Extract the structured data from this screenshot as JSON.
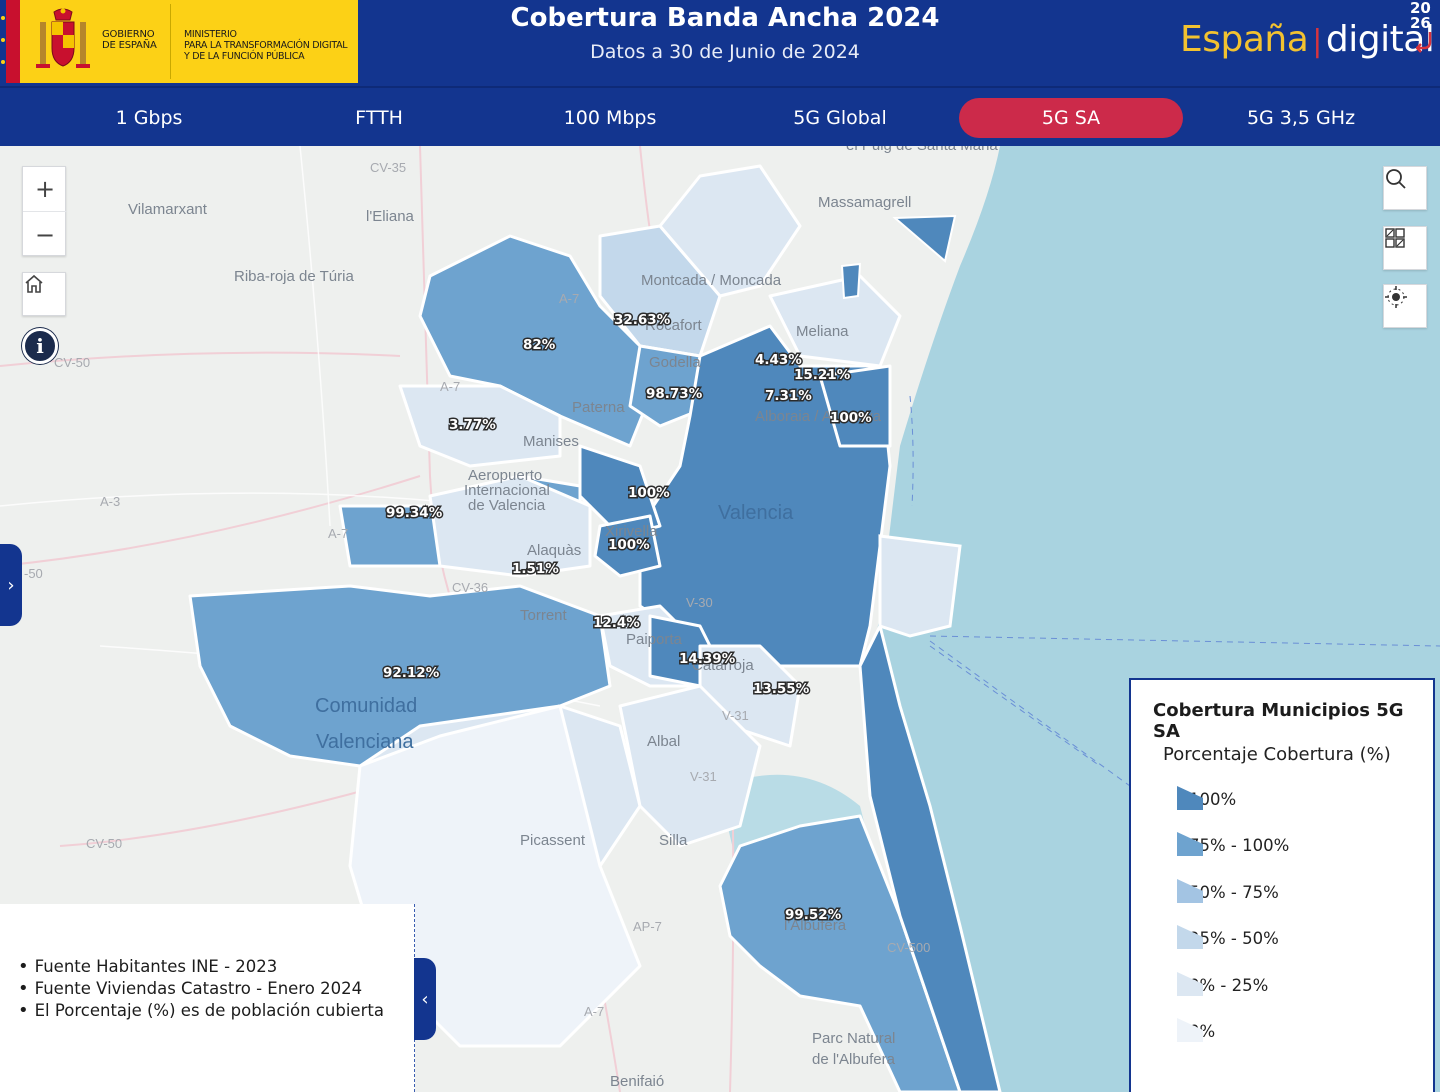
{
  "header": {
    "gov_line1": "GOBIERNO",
    "gov_line2": "DE ESPAÑA",
    "ministry_line1": "MINISTERIO",
    "ministry_line2": "PARA LA TRANSFORMACIÓN DIGITAL",
    "ministry_line3": "Y DE LA FUNCIÓN PÚBLICA",
    "title": "Cobertura Banda Ancha 2024",
    "subtitle": "Datos a 30 de Junio de 2024",
    "brand_word1": "España",
    "brand_word2": "digital",
    "brand_year_top": "20",
    "brand_year_bottom": "26",
    "colors": {
      "primary": "#13358f",
      "gov_yellow": "#fcd116",
      "active_tab": "#cc2a4a",
      "brand_yellow": "#f2c230"
    }
  },
  "tabs": [
    {
      "label": "1 Gbps",
      "active": false
    },
    {
      "label": "FTTH",
      "active": false
    },
    {
      "label": "100 Mbps",
      "active": false
    },
    {
      "label": "5G Global",
      "active": false
    },
    {
      "label": "5G SA",
      "active": true
    },
    {
      "label": "5G 3,5 GHz",
      "active": false
    }
  ],
  "controls": {
    "zoom_in": "+",
    "zoom_out": "−",
    "home_icon": "home-icon",
    "info_icon": "info-icon",
    "search_icon": "search-icon",
    "qr_icon": "qr-grid-icon",
    "locate_icon": "locate-icon",
    "collapse_left": "›",
    "collapse_notes": "‹"
  },
  "map": {
    "places": {
      "vilamarxant": "Vilamarxant",
      "eliana": "l'Eliana",
      "ribaroja": "Riba-roja de Túria",
      "massamagrell": "Massamagrell",
      "puig": "el Puig de Santa Maria",
      "moncada": "Montcada / Moncada",
      "rocafort": "Rocafort",
      "godella": "Godella",
      "meliana": "Meliana",
      "paterna": "Paterna",
      "manises": "Manises",
      "alboraia": "Alboraia / Alboraya",
      "aeropuerto1": "Aeropuerto",
      "aeropuerto2": "Internacional",
      "aeropuerto3": "de Valencia",
      "valencia": "Valencia",
      "xirivella": "Xirivella",
      "alaquas": "Alaquàs",
      "torrent": "Torrent",
      "paiporta": "Paiporta",
      "catarroja": "Catarroja",
      "albal": "Albal",
      "picassent": "Picassent",
      "silla": "Silla",
      "albufera_town": "l'Albufera",
      "comunidad1": "Comunidad",
      "comunidad2": "Valenciana",
      "parc1": "Parc Natural",
      "parc2": "de l'Albufera",
      "benifaio": "Benifaió"
    },
    "roads": {
      "cv35": "CV-35",
      "cv50a": "CV-50",
      "cv50b": "-50",
      "cv50c": "CV-50",
      "cv500": "CV-500",
      "a7a": "A-7",
      "a7b": "A-7",
      "a7c": "A-7",
      "a7d": "A-7",
      "a3": "A-3",
      "cv36": "CV-36",
      "v30": "V-30",
      "v31a": "V-31",
      "v31b": "V-31",
      "ap7": "AP-7"
    },
    "coverage_labels": {
      "moncada": "32.63%",
      "paterna": "82%",
      "godella": "98.73%",
      "meliana": "4.43%",
      "foios": "15.21%",
      "alboraia": "7.31%",
      "alboraia_coast": "100%",
      "manises": "3.77%",
      "quart": "100%",
      "aldaia": "99.34%",
      "xirivella": "100%",
      "alaquas": "1.51%",
      "paiporta": "12.4%",
      "catarroja": "14.39%",
      "massanassa": "13.55%",
      "torrent": "92.12%",
      "albufera": "99.52%"
    },
    "colors": {
      "sea": "#a9d3e0",
      "land": "#eef0ee",
      "c100": "#4f88bc",
      "c75": "#6ea3cf",
      "c50": "#a3c4e3",
      "c25": "#c3d8eb",
      "c0": "#dce7f2",
      "cnone": "#eef3f9"
    }
  },
  "notes": [
    "Fuente Habitantes INE - 2023",
    "Fuente Viviendas Catastro - Enero 2024",
    "El Porcentaje (%) es de población cubierta"
  ],
  "legend": {
    "title": "Cobertura Municipios 5G SA",
    "subtitle": "Porcentaje Cobertura (%)",
    "items": [
      {
        "label": "100%",
        "color": "#4f88bc"
      },
      {
        "label": "75% - 100%",
        "color": "#6ea3cf"
      },
      {
        "label": "50% - 75%",
        "color": "#a3c4e3"
      },
      {
        "label": "25% - 50%",
        "color": "#c3d8eb"
      },
      {
        "label": "0% - 25%",
        "color": "#dce7f2"
      },
      {
        "label": "0%",
        "color": "#eef3f9"
      }
    ]
  }
}
